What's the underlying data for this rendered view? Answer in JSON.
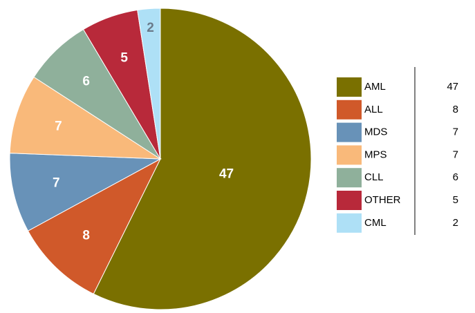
{
  "chart_data": {
    "type": "pie",
    "categories": [
      "AML",
      "ALL",
      "MDS",
      "MPS",
      "CLL",
      "OTHER",
      "CML"
    ],
    "values": [
      47,
      8,
      7,
      7,
      6,
      5,
      2
    ],
    "colors": [
      "#7a7000",
      "#d0592a",
      "#6892b8",
      "#f9b97a",
      "#8fb09b",
      "#b8293a",
      "#aee0f6"
    ],
    "legend": "right"
  }
}
